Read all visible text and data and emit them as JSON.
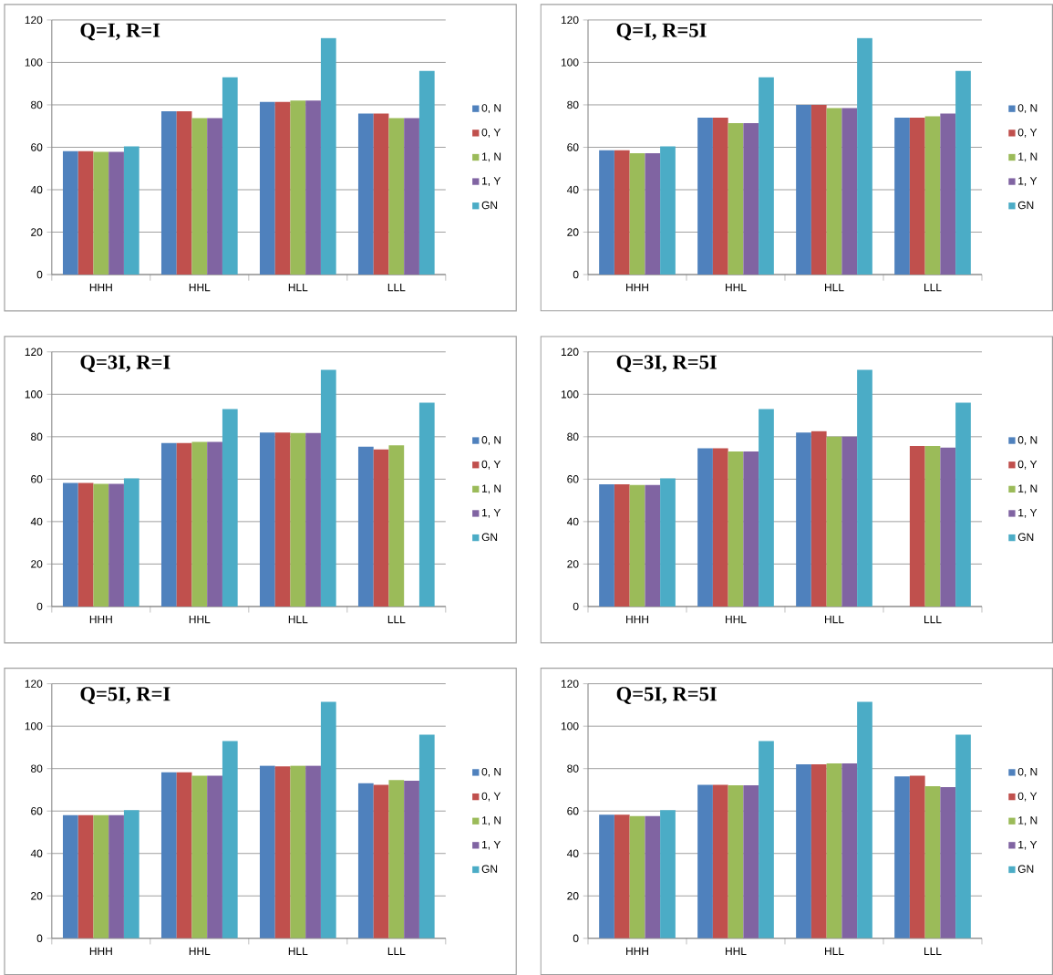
{
  "chart_data": [
    {
      "type": "bar",
      "title": "Q=I, R=I",
      "categories": [
        "HHH",
        "HHL",
        "HLL",
        "LLL"
      ],
      "ylim": [
        0,
        120
      ],
      "yticks": [
        0,
        20,
        40,
        60,
        80,
        100,
        120
      ],
      "grid": "y",
      "legend": "right",
      "series": [
        {
          "name": "0, N",
          "color": "#4f81bd",
          "values": [
            58.2,
            77,
            81.4,
            75.9
          ]
        },
        {
          "name": "0, Y",
          "color": "#c0504d",
          "values": [
            58.2,
            77,
            81.4,
            75.9
          ]
        },
        {
          "name": "1, N",
          "color": "#9bbb59",
          "values": [
            57.8,
            73.7,
            82,
            73.7
          ]
        },
        {
          "name": "1, Y",
          "color": "#8064a2",
          "values": [
            57.8,
            73.7,
            82,
            73.7
          ]
        },
        {
          "name": "GN",
          "color": "#4bacc6",
          "values": [
            60.4,
            93,
            111.5,
            96
          ]
        }
      ]
    },
    {
      "type": "bar",
      "title": "Q=I, R=5I",
      "categories": [
        "HHH",
        "HHL",
        "HLL",
        "LLL"
      ],
      "ylim": [
        0,
        120
      ],
      "yticks": [
        0,
        20,
        40,
        60,
        80,
        100,
        120
      ],
      "grid": "y",
      "legend": "right",
      "series": [
        {
          "name": "0, N",
          "color": "#4f81bd",
          "values": [
            58.6,
            74,
            80,
            74
          ]
        },
        {
          "name": "0, Y",
          "color": "#c0504d",
          "values": [
            58.6,
            74,
            80,
            74
          ]
        },
        {
          "name": "1, N",
          "color": "#9bbb59",
          "values": [
            57.2,
            71.4,
            78.5,
            74.6
          ]
        },
        {
          "name": "1, Y",
          "color": "#8064a2",
          "values": [
            57.2,
            71.4,
            78.5,
            75.9
          ]
        },
        {
          "name": "GN",
          "color": "#4bacc6",
          "values": [
            60.4,
            93,
            111.5,
            96
          ]
        }
      ]
    },
    {
      "type": "bar",
      "title": "Q=3I, R=I",
      "categories": [
        "HHH",
        "HHL",
        "HLL",
        "LLL"
      ],
      "ylim": [
        0,
        120
      ],
      "yticks": [
        0,
        20,
        40,
        60,
        80,
        100,
        120
      ],
      "grid": "y",
      "legend": "right",
      "series": [
        {
          "name": "0, N",
          "color": "#4f81bd",
          "values": [
            58.2,
            77,
            82,
            75.3
          ]
        },
        {
          "name": "0, Y",
          "color": "#c0504d",
          "values": [
            58.2,
            77,
            82,
            74
          ]
        },
        {
          "name": "1, N",
          "color": "#9bbb59",
          "values": [
            57.8,
            77.6,
            81.7,
            75.9
          ]
        },
        {
          "name": "1, Y",
          "color": "#8064a2",
          "values": [
            57.8,
            77.6,
            81.7,
            null
          ]
        },
        {
          "name": "GN",
          "color": "#4bacc6",
          "values": [
            60.4,
            93,
            111.5,
            96
          ]
        }
      ]
    },
    {
      "type": "bar",
      "title": "Q=3I, R=5I",
      "categories": [
        "HHH",
        "HHL",
        "HLL",
        "LLL"
      ],
      "ylim": [
        0,
        120
      ],
      "yticks": [
        0,
        20,
        40,
        60,
        80,
        100,
        120
      ],
      "grid": "y",
      "legend": "right",
      "series": [
        {
          "name": "0, N",
          "color": "#4f81bd",
          "values": [
            57.6,
            74.6,
            82,
            null
          ]
        },
        {
          "name": "0, Y",
          "color": "#c0504d",
          "values": [
            57.6,
            74.6,
            82.6,
            75.6
          ]
        },
        {
          "name": "1, N",
          "color": "#9bbb59",
          "values": [
            57.3,
            73,
            80,
            75.6
          ]
        },
        {
          "name": "1, Y",
          "color": "#8064a2",
          "values": [
            57.3,
            73,
            80,
            74.9
          ]
        },
        {
          "name": "GN",
          "color": "#4bacc6",
          "values": [
            60.4,
            93,
            111.5,
            96
          ]
        }
      ]
    },
    {
      "type": "bar",
      "title": "Q=5I, R=I",
      "categories": [
        "HHH",
        "HHL",
        "HLL",
        "LLL"
      ],
      "ylim": [
        0,
        120
      ],
      "yticks": [
        0,
        20,
        40,
        60,
        80,
        100,
        120
      ],
      "grid": "y",
      "legend": "right",
      "series": [
        {
          "name": "0, N",
          "color": "#4f81bd",
          "values": [
            58,
            78.3,
            81.4,
            73.1
          ]
        },
        {
          "name": "0, Y",
          "color": "#c0504d",
          "values": [
            58,
            78.3,
            81,
            72.4
          ]
        },
        {
          "name": "1, N",
          "color": "#9bbb59",
          "values": [
            58,
            76.6,
            81.4,
            74.6
          ]
        },
        {
          "name": "1, Y",
          "color": "#8064a2",
          "values": [
            58,
            76.6,
            81.4,
            74.3
          ]
        },
        {
          "name": "GN",
          "color": "#4bacc6",
          "values": [
            60.4,
            93,
            111.5,
            96
          ]
        }
      ]
    },
    {
      "type": "bar",
      "title": "Q=5I, R=5I",
      "categories": [
        "HHH",
        "HHL",
        "HLL",
        "LLL"
      ],
      "ylim": [
        0,
        120
      ],
      "yticks": [
        0,
        20,
        40,
        60,
        80,
        100,
        120
      ],
      "grid": "y",
      "legend": "right",
      "series": [
        {
          "name": "0, N",
          "color": "#4f81bd",
          "values": [
            58.3,
            72.4,
            82,
            76.3
          ]
        },
        {
          "name": "0, Y",
          "color": "#c0504d",
          "values": [
            58.3,
            72.4,
            82,
            76.6
          ]
        },
        {
          "name": "1, N",
          "color": "#9bbb59",
          "values": [
            57.6,
            72.1,
            82.4,
            71.7
          ]
        },
        {
          "name": "1, Y",
          "color": "#8064a2",
          "values": [
            57.6,
            72.1,
            82.4,
            71.3
          ]
        },
        {
          "name": "GN",
          "color": "#4bacc6",
          "values": [
            60.4,
            93,
            111.5,
            96
          ]
        }
      ]
    }
  ]
}
